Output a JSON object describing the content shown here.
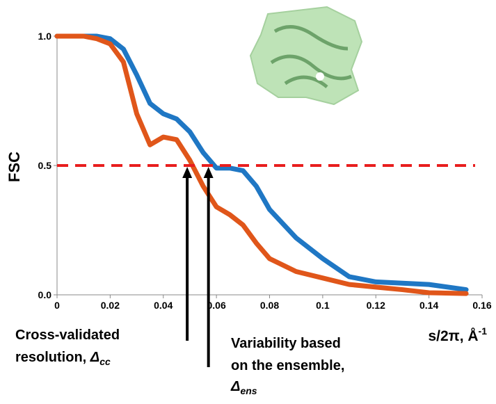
{
  "chart_data": {
    "type": "line",
    "y_label": "FSC",
    "x_label": "s/2π, Å",
    "x_label_sup": "-1",
    "x": [
      0,
      0.01,
      0.015,
      0.02,
      0.025,
      0.03,
      0.035,
      0.04,
      0.045,
      0.05,
      0.055,
      0.06,
      0.065,
      0.07,
      0.075,
      0.08,
      0.09,
      0.1,
      0.11,
      0.12,
      0.13,
      0.14,
      0.154
    ],
    "series": [
      {
        "color": "#1f77c4",
        "values": [
          1.0,
          1.0,
          1.0,
          0.99,
          0.95,
          0.85,
          0.74,
          0.7,
          0.68,
          0.63,
          0.55,
          0.49,
          0.49,
          0.48,
          0.42,
          0.33,
          0.22,
          0.14,
          0.07,
          0.05,
          0.045,
          0.04,
          0.02
        ]
      },
      {
        "color": "#e0561a",
        "values": [
          1.0,
          1.0,
          0.99,
          0.97,
          0.9,
          0.7,
          0.58,
          0.61,
          0.6,
          0.52,
          0.42,
          0.34,
          0.31,
          0.27,
          0.2,
          0.14,
          0.09,
          0.065,
          0.04,
          0.03,
          0.02,
          0.008,
          0.005
        ]
      }
    ],
    "threshold": {
      "value": 0.5,
      "color": "#e81e1e"
    },
    "xlim": [
      0,
      0.16
    ],
    "ylim": [
      0,
      1.0
    ],
    "xticks": [
      0,
      0.02,
      0.04,
      0.06,
      0.08,
      0.1,
      0.12,
      0.14,
      0.16
    ],
    "yticks": [
      {
        "value": 0,
        "label": "0.0"
      },
      {
        "value": 0.5,
        "label": "0.5"
      },
      {
        "value": 1.0,
        "label": "1.0"
      }
    ],
    "annotations": [
      {
        "lines": [
          "Cross-validated",
          "resolution, "
        ],
        "symbol": "Δ",
        "sub": "cc",
        "x": 0.049
      },
      {
        "lines": [
          "Variability based",
          "on the ensemble,"
        ],
        "symbol": "Δ",
        "sub": "ens",
        "x": 0.057
      }
    ]
  }
}
